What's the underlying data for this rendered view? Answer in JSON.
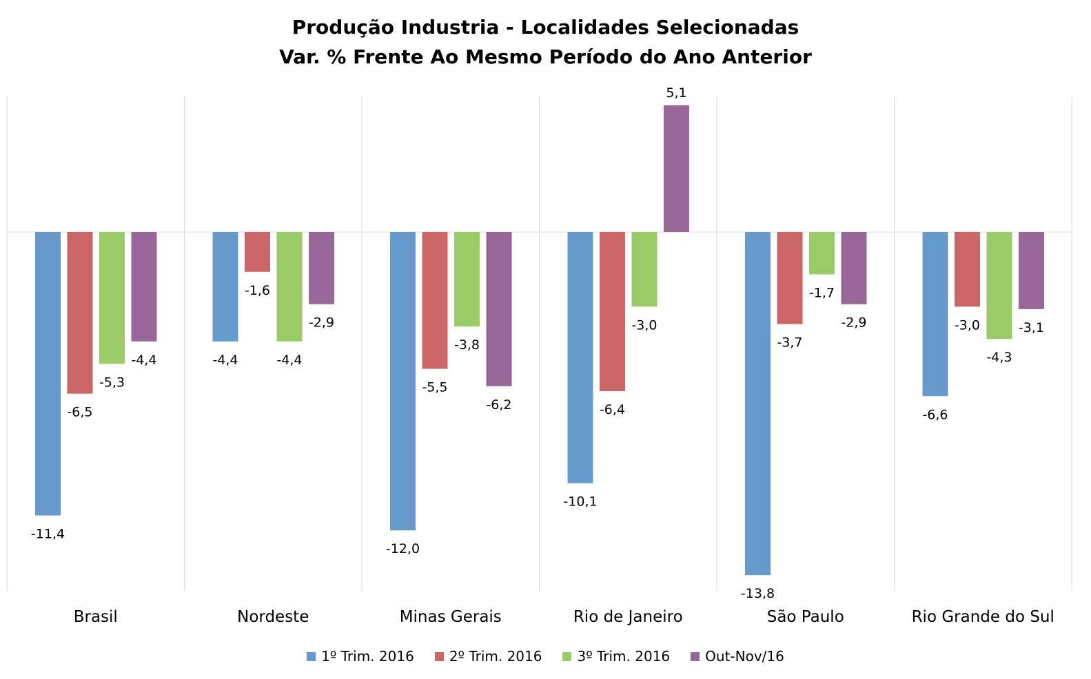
{
  "chart_data": {
    "type": "bar",
    "title": "Produção Industria - Localidades Selecionadas",
    "subtitle": "Var. % Frente Ao Mesmo Período do Ano Anterior",
    "categories": [
      "Brasil",
      "Nordeste",
      "Minas Gerais",
      "Rio de Janeiro",
      "São Paulo",
      "Rio Grande do Sul"
    ],
    "series": [
      {
        "name": "1º Trim. 2016",
        "color": "#6699CC",
        "values": [
          -11.4,
          -4.4,
          -12.0,
          -10.1,
          -13.8,
          -6.6
        ],
        "labels": [
          "-11,4",
          "-4,4",
          "-12,0",
          "-10,1",
          "-13,8",
          "-6,6"
        ]
      },
      {
        "name": "2º Trim. 2016",
        "color": "#CC6666",
        "values": [
          -6.5,
          -1.6,
          -5.5,
          -6.4,
          -3.7,
          -3.0
        ],
        "labels": [
          "-6,5",
          "-1,6",
          "-5,5",
          "-6,4",
          "-3,7",
          "-3,0"
        ]
      },
      {
        "name": "3º Trim. 2016",
        "color": "#99CC66",
        "values": [
          -5.3,
          -4.4,
          -3.8,
          -3.0,
          -1.7,
          -4.3
        ],
        "labels": [
          "-5,3",
          "-4,4",
          "-3,8",
          "-3,0",
          "-1,7",
          "-4,3"
        ]
      },
      {
        "name": "Out-Nov/16",
        "color": "#996699",
        "values": [
          -4.4,
          -2.9,
          -6.2,
          5.1,
          -2.9,
          -3.1
        ],
        "labels": [
          "-4,4",
          "-2,9",
          "-6,2",
          "5,1",
          "-2,9",
          "-3,1"
        ]
      }
    ],
    "ylim": [
      -14.5,
      5.5
    ],
    "grid": "vertical category separators",
    "legend": "bottom-center"
  }
}
